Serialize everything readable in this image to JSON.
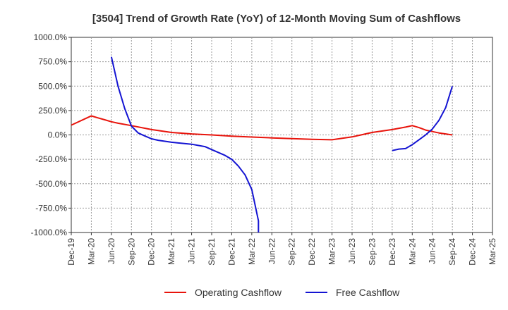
{
  "chart_data": {
    "type": "line",
    "title": "[3504]  Trend of Growth Rate (YoY) of 12-Month Moving Sum of Cashflows",
    "xlabel": "",
    "ylabel": "",
    "ylim": [
      -1000,
      1000
    ],
    "y_ticks": [
      "1000.0%",
      "750.0%",
      "500.0%",
      "250.0%",
      "0.0%",
      "-250.0%",
      "-500.0%",
      "-750.0%",
      "-1000.0%"
    ],
    "categories": [
      "Dec-19",
      "Mar-20",
      "Jun-20",
      "Sep-20",
      "Dec-20",
      "Mar-21",
      "Jun-21",
      "Sep-21",
      "Dec-21",
      "Mar-22",
      "Jun-22",
      "Sep-22",
      "Dec-22",
      "Mar-23",
      "Jun-23",
      "Sep-23",
      "Dec-23",
      "Mar-24",
      "Jun-24",
      "Sep-24",
      "Dec-24",
      "Mar-25"
    ],
    "grid": true,
    "legend_position": "bottom",
    "series": [
      {
        "name": "Operating Cashflow",
        "color": "#e8140c",
        "points": [
          [
            "Dec-19",
            100
          ],
          [
            "Mar-20",
            195
          ],
          [
            "Apr-20",
            175
          ],
          [
            "May-20",
            155
          ],
          [
            "Jun-20",
            135
          ],
          [
            "Jul-20",
            120
          ],
          [
            "Sep-20",
            95
          ],
          [
            "Dec-20",
            55
          ],
          [
            "Mar-21",
            25
          ],
          [
            "Jun-21",
            10
          ],
          [
            "Sep-21",
            0
          ],
          [
            "Dec-21",
            -12
          ],
          [
            "Mar-22",
            -22
          ],
          [
            "Jun-22",
            -30
          ],
          [
            "Sep-22",
            -38
          ],
          [
            "Dec-22",
            -45
          ],
          [
            "Mar-23",
            -50
          ],
          [
            "Jun-23",
            -20
          ],
          [
            "Sep-23",
            25
          ],
          [
            "Dec-23",
            55
          ],
          [
            "Feb-24",
            80
          ],
          [
            "Mar-24",
            95
          ],
          [
            "Apr-24",
            75
          ],
          [
            "May-24",
            50
          ],
          [
            "Jun-24",
            35
          ],
          [
            "Jul-24",
            20
          ],
          [
            "Aug-24",
            10
          ],
          [
            "Sep-24",
            0
          ]
        ]
      },
      {
        "name": "Free Cashflow",
        "color": "#1414d2",
        "segments": [
          [
            [
              "Jun-20",
              800
            ],
            [
              "Jul-20",
              500
            ],
            [
              "Aug-20",
              270
            ],
            [
              "Sep-20",
              90
            ],
            [
              "Oct-20",
              20
            ],
            [
              "Nov-20",
              -10
            ],
            [
              "Dec-20",
              -40
            ],
            [
              "Jan-21",
              -55
            ],
            [
              "Mar-21",
              -75
            ],
            [
              "Jun-21",
              -95
            ],
            [
              "Aug-21",
              -120
            ],
            [
              "Sep-21",
              -150
            ],
            [
              "Oct-21",
              -180
            ],
            [
              "Nov-21",
              -210
            ],
            [
              "Dec-21",
              -250
            ],
            [
              "Jan-22",
              -320
            ],
            [
              "Feb-22",
              -410
            ],
            [
              "Mar-22",
              -560
            ],
            [
              "Apr-22",
              -880
            ],
            [
              "Apr-22",
              -1000
            ]
          ],
          [
            [
              "Dec-23",
              -160
            ],
            [
              "Jan-24",
              -145
            ],
            [
              "Feb-24",
              -140
            ],
            [
              "Mar-24",
              -100
            ],
            [
              "Apr-24",
              -50
            ],
            [
              "May-24",
              0
            ],
            [
              "Jun-24",
              60
            ],
            [
              "Jul-24",
              150
            ],
            [
              "Aug-24",
              280
            ],
            [
              "Sep-24",
              500
            ]
          ]
        ]
      }
    ]
  }
}
